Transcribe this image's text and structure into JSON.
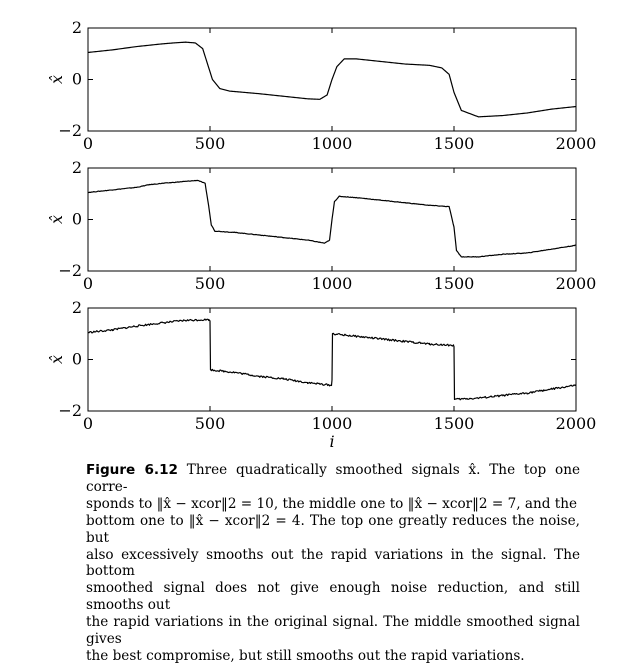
{
  "chart_data": [
    {
      "type": "line",
      "ylabel": "x̂",
      "xlabel": "",
      "xlim": [
        0,
        2000
      ],
      "ylim": [
        -2,
        2
      ],
      "x_ticks": [
        "0",
        "500",
        "1000",
        "1500",
        "2000"
      ],
      "y_ticks": [
        "2",
        "0",
        "−2"
      ],
      "series": [
        {
          "points": [
            [
              0,
              1.05
            ],
            [
              100,
              1.15
            ],
            [
              200,
              1.28
            ],
            [
              300,
              1.38
            ],
            [
              350,
              1.42
            ],
            [
              400,
              1.45
            ],
            [
              440,
              1.42
            ],
            [
              470,
              1.2
            ],
            [
              490,
              0.6
            ],
            [
              510,
              0.0
            ],
            [
              540,
              -0.35
            ],
            [
              580,
              -0.45
            ],
            [
              700,
              -0.55
            ],
            [
              800,
              -0.65
            ],
            [
              900,
              -0.75
            ],
            [
              950,
              -0.77
            ],
            [
              980,
              -0.6
            ],
            [
              1000,
              0.0
            ],
            [
              1020,
              0.5
            ],
            [
              1050,
              0.8
            ],
            [
              1100,
              0.8
            ],
            [
              1200,
              0.7
            ],
            [
              1300,
              0.6
            ],
            [
              1400,
              0.55
            ],
            [
              1450,
              0.45
            ],
            [
              1480,
              0.2
            ],
            [
              1500,
              -0.5
            ],
            [
              1530,
              -1.2
            ],
            [
              1600,
              -1.45
            ],
            [
              1700,
              -1.4
            ],
            [
              1800,
              -1.3
            ],
            [
              1900,
              -1.15
            ],
            [
              2000,
              -1.05
            ]
          ]
        }
      ]
    },
    {
      "type": "line",
      "ylabel": "x̂",
      "xlabel": "",
      "xlim": [
        0,
        2000
      ],
      "ylim": [
        -2,
        2
      ],
      "x_ticks": [
        "0",
        "500",
        "1000",
        "1500",
        "2000"
      ],
      "y_ticks": [
        "2",
        "0",
        "−2"
      ],
      "series": [
        {
          "points": [
            [
              0,
              1.05
            ],
            [
              100,
              1.15
            ],
            [
              200,
              1.25
            ],
            [
              250,
              1.35
            ],
            [
              300,
              1.4
            ],
            [
              400,
              1.48
            ],
            [
              450,
              1.52
            ],
            [
              480,
              1.4
            ],
            [
              495,
              0.5
            ],
            [
              505,
              -0.2
            ],
            [
              520,
              -0.45
            ],
            [
              600,
              -0.5
            ],
            [
              700,
              -0.6
            ],
            [
              800,
              -0.7
            ],
            [
              900,
              -0.8
            ],
            [
              970,
              -0.92
            ],
            [
              990,
              -0.8
            ],
            [
              1000,
              0.0
            ],
            [
              1010,
              0.7
            ],
            [
              1030,
              0.9
            ],
            [
              1100,
              0.85
            ],
            [
              1200,
              0.75
            ],
            [
              1300,
              0.65
            ],
            [
              1400,
              0.55
            ],
            [
              1480,
              0.5
            ],
            [
              1500,
              -0.3
            ],
            [
              1510,
              -1.2
            ],
            [
              1530,
              -1.45
            ],
            [
              1600,
              -1.45
            ],
            [
              1700,
              -1.35
            ],
            [
              1800,
              -1.3
            ],
            [
              1900,
              -1.15
            ],
            [
              2000,
              -1.0
            ]
          ]
        }
      ]
    },
    {
      "type": "line",
      "ylabel": "x̂",
      "xlabel": "i",
      "xlim": [
        0,
        2000
      ],
      "ylim": [
        -2,
        2
      ],
      "x_ticks": [
        "0",
        "500",
        "1000",
        "1500",
        "2000"
      ],
      "y_ticks": [
        "2",
        "0",
        "−2"
      ],
      "series": [
        {
          "points": [
            [
              0,
              1.05
            ],
            [
              100,
              1.15
            ],
            [
              200,
              1.3
            ],
            [
              300,
              1.42
            ],
            [
              400,
              1.52
            ],
            [
              495,
              1.55
            ],
            [
              500,
              1.5
            ],
            [
              502,
              -0.4
            ],
            [
              600,
              -0.5
            ],
            [
              700,
              -0.65
            ],
            [
              800,
              -0.75
            ],
            [
              900,
              -0.9
            ],
            [
              998,
              -1.0
            ],
            [
              1000,
              -0.8
            ],
            [
              1002,
              1.0
            ],
            [
              1100,
              0.9
            ],
            [
              1200,
              0.8
            ],
            [
              1300,
              0.7
            ],
            [
              1400,
              0.6
            ],
            [
              1498,
              0.55
            ],
            [
              1500,
              0.5
            ],
            [
              1502,
              -1.55
            ],
            [
              1600,
              -1.5
            ],
            [
              1700,
              -1.4
            ],
            [
              1800,
              -1.3
            ],
            [
              1900,
              -1.15
            ],
            [
              2000,
              -1.0
            ]
          ]
        }
      ]
    }
  ],
  "caption": {
    "label": "Figure 6.12",
    "lines": [
      "Three quadratically smoothed signals x̂. The top one corre-",
      "sponds to ‖x̂ − xcor‖2 = 10, the middle one to ‖x̂ − xcor‖2 = 7, and the",
      "bottom one to ‖x̂ − xcor‖2 = 4. The top one greatly reduces the noise, but",
      "also excessively smooths out the rapid variations in the signal. The bottom",
      "smoothed signal does not give enough noise reduction, and still smooths out",
      "the rapid variations in the original signal. The middle smoothed signal gives",
      "the best compromise, but still smooths out the rapid variations."
    ]
  }
}
